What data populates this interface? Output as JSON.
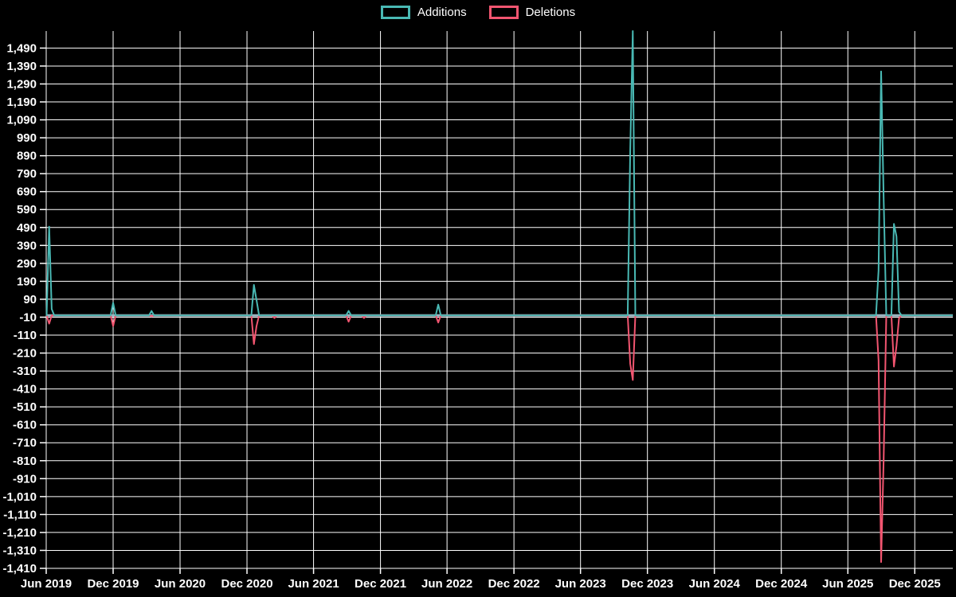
{
  "chart_data": {
    "type": "line",
    "title": "",
    "legend_position": "top-center",
    "grid": true,
    "background_color": "#000000",
    "grid_color": "#ffffff",
    "zero_line_color": "#9db7c3",
    "text_color": "#ffffff",
    "legend": [
      {
        "name": "Additions",
        "color": "#49b9b4"
      },
      {
        "name": "Deletions",
        "color": "#f25570"
      }
    ],
    "y_range": [
      -1410,
      1585
    ],
    "x_range_dates": [
      "2019-06-01",
      "2026-03-15"
    ],
    "y_ticks": [
      {
        "v": 1490,
        "label": "1,490"
      },
      {
        "v": 1390,
        "label": "1,390"
      },
      {
        "v": 1290,
        "label": "1,290"
      },
      {
        "v": 1190,
        "label": "1,190"
      },
      {
        "v": 1090,
        "label": "1,090"
      },
      {
        "v": 990,
        "label": "990"
      },
      {
        "v": 890,
        "label": "890"
      },
      {
        "v": 790,
        "label": "790"
      },
      {
        "v": 690,
        "label": "690"
      },
      {
        "v": 590,
        "label": "590"
      },
      {
        "v": 490,
        "label": "490"
      },
      {
        "v": 390,
        "label": "390"
      },
      {
        "v": 290,
        "label": "290"
      },
      {
        "v": 190,
        "label": "190"
      },
      {
        "v": 90,
        "label": "90"
      },
      {
        "v": -10,
        "label": "-10"
      },
      {
        "v": -110,
        "label": "-110"
      },
      {
        "v": -210,
        "label": "-210"
      },
      {
        "v": -310,
        "label": "-310"
      },
      {
        "v": -410,
        "label": "-410"
      },
      {
        "v": -510,
        "label": "-510"
      },
      {
        "v": -610,
        "label": "-610"
      },
      {
        "v": -710,
        "label": "-710"
      },
      {
        "v": -810,
        "label": "-810"
      },
      {
        "v": -910,
        "label": "-910"
      },
      {
        "v": -1010,
        "label": "-1,010"
      },
      {
        "v": -1110,
        "label": "-1,110"
      },
      {
        "v": -1210,
        "label": "-1,210"
      },
      {
        "v": -1310,
        "label": "-1,310"
      },
      {
        "v": -1410,
        "label": "-1,410"
      }
    ],
    "x_ticks": [
      {
        "label": "Jun 2019",
        "date": "2019-06-01"
      },
      {
        "label": "Dec 2019",
        "date": "2019-12-01"
      },
      {
        "label": "Jun 2020",
        "date": "2020-06-01"
      },
      {
        "label": "Dec 2020",
        "date": "2020-12-01"
      },
      {
        "label": "Jun 2021",
        "date": "2021-06-01"
      },
      {
        "label": "Dec 2021",
        "date": "2021-12-01"
      },
      {
        "label": "Jun 2022",
        "date": "2022-06-01"
      },
      {
        "label": "Dec 2022",
        "date": "2022-12-01"
      },
      {
        "label": "Jun 2023",
        "date": "2023-06-01"
      },
      {
        "label": "Dec 2023",
        "date": "2023-12-01"
      },
      {
        "label": "Jun 2024",
        "date": "2024-06-01"
      },
      {
        "label": "Dec 2024",
        "date": "2024-12-01"
      },
      {
        "label": "Jun 2025",
        "date": "2025-06-01"
      },
      {
        "label": "Dec 2025",
        "date": "2025-12-01"
      }
    ],
    "series": [
      {
        "name": "Additions",
        "color": "#49b9b4",
        "baseline_value": 0,
        "events": [
          {
            "date": "2019-06-09",
            "value": 495
          },
          {
            "date": "2019-06-16",
            "value": 35
          },
          {
            "date": "2019-12-01",
            "value": 70
          },
          {
            "date": "2020-03-15",
            "value": 25
          },
          {
            "date": "2020-12-20",
            "value": 170
          },
          {
            "date": "2020-12-27",
            "value": 85
          },
          {
            "date": "2021-09-05",
            "value": 25
          },
          {
            "date": "2022-05-08",
            "value": 60
          },
          {
            "date": "2023-10-15",
            "value": 920
          },
          {
            "date": "2023-10-22",
            "value": 1600
          },
          {
            "date": "2025-08-24",
            "value": 250
          },
          {
            "date": "2025-08-31",
            "value": 1360
          },
          {
            "date": "2025-09-07",
            "value": 650
          },
          {
            "date": "2025-10-05",
            "value": 510
          },
          {
            "date": "2025-10-12",
            "value": 440
          },
          {
            "date": "2025-10-19",
            "value": 20
          }
        ]
      },
      {
        "name": "Deletions",
        "color": "#f25570",
        "baseline_value": 0,
        "events": [
          {
            "date": "2019-06-09",
            "value": -46
          },
          {
            "date": "2019-12-01",
            "value": -60
          },
          {
            "date": "2020-03-15",
            "value": -5
          },
          {
            "date": "2020-12-20",
            "value": -160
          },
          {
            "date": "2020-12-27",
            "value": -60
          },
          {
            "date": "2021-02-14",
            "value": -15
          },
          {
            "date": "2021-09-05",
            "value": -35
          },
          {
            "date": "2021-10-17",
            "value": -15
          },
          {
            "date": "2022-05-08",
            "value": -40
          },
          {
            "date": "2023-10-15",
            "value": -270
          },
          {
            "date": "2023-10-22",
            "value": -360
          },
          {
            "date": "2025-08-24",
            "value": -250
          },
          {
            "date": "2025-08-31",
            "value": -1375
          },
          {
            "date": "2025-09-07",
            "value": -800
          },
          {
            "date": "2025-10-05",
            "value": -285
          },
          {
            "date": "2025-10-12",
            "value": -170
          },
          {
            "date": "2025-10-19",
            "value": -15
          }
        ]
      }
    ]
  }
}
